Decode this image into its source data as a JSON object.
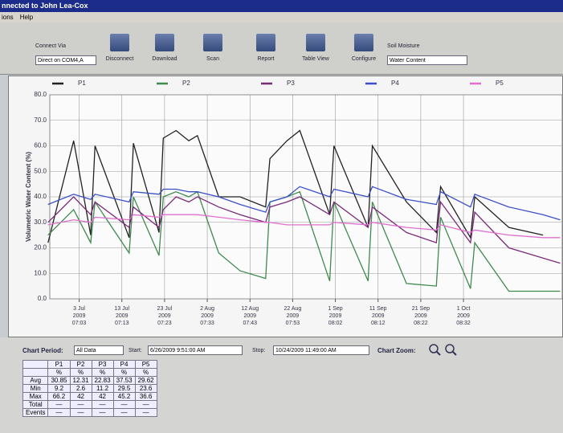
{
  "window": {
    "title": "nnected to John Lea-Cox",
    "menu": [
      "ions",
      "Help"
    ]
  },
  "toolbar": {
    "connect_via_label": "Connect Via",
    "connect_via": "Direct on COM4,A",
    "buttons": [
      "Disconnect",
      "Download",
      "Scan",
      "Report",
      "Table View",
      "Configure"
    ],
    "soil_moisture_label": "Soil Moisture",
    "soil_moisture": "Water Content"
  },
  "chart_data": {
    "type": "line",
    "y_label": "Volumetric Water Content (%)",
    "x": [
      "2009-06-26",
      "2009-07-02",
      "2009-07-06",
      "2009-07-07",
      "2009-07-15",
      "2009-07-16",
      "2009-07-22",
      "2009-07-23",
      "2009-07-26",
      "2009-07-29",
      "2009-07-31",
      "2009-08-05",
      "2009-08-10",
      "2009-08-16",
      "2009-08-17",
      "2009-08-21",
      "2009-08-24",
      "2009-08-31",
      "2009-09-01",
      "2009-09-09",
      "2009-09-10",
      "2009-09-18",
      "2009-09-25",
      "2009-09-26",
      "2009-10-03",
      "2009-10-04",
      "2009-10-12",
      "2009-10-20",
      "2009-10-24"
    ],
    "series": [
      {
        "name": "P1",
        "color": "#222222",
        "values": [
          22,
          62,
          25,
          60,
          24,
          61,
          26,
          63,
          66,
          62,
          64,
          40,
          40,
          36,
          55,
          62,
          66,
          33,
          60,
          28,
          60,
          38,
          26,
          44,
          24,
          40,
          28,
          25,
          null
        ]
      },
      {
        "name": "P2",
        "color": "#3f8a4f",
        "values": [
          25,
          35,
          22,
          38,
          18,
          40,
          17,
          40,
          42,
          40,
          42,
          18,
          11,
          8,
          38,
          40,
          42,
          7,
          38,
          7,
          38,
          6,
          5,
          32,
          4,
          22,
          3,
          3,
          3
        ]
      },
      {
        "name": "P3",
        "color": "#7a2a7a",
        "values": [
          30,
          40,
          33,
          38,
          28,
          36,
          28,
          35,
          40,
          38,
          40,
          36,
          33,
          30,
          36,
          38,
          40,
          33,
          38,
          28,
          36,
          26,
          22,
          38,
          22,
          34,
          20,
          16,
          14
        ]
      },
      {
        "name": "P4",
        "color": "#3a4fc8",
        "values": [
          37,
          41,
          39,
          41,
          38,
          42,
          41,
          43,
          43,
          42,
          42,
          40,
          37,
          34,
          38,
          40,
          44,
          40,
          43,
          40,
          44,
          39,
          37,
          42,
          36,
          41,
          36,
          33,
          31
        ]
      },
      {
        "name": "P5",
        "color": "#e070d0",
        "values": [
          29,
          31,
          30,
          32,
          31,
          33,
          32,
          33,
          33,
          33,
          33,
          32,
          31,
          30,
          30,
          29,
          29,
          29,
          30,
          29,
          30,
          28,
          27,
          29,
          26,
          27,
          25,
          24,
          24
        ]
      }
    ],
    "xlim": [
      "2009-06-26T09:51",
      "2009-10-24T11:49"
    ],
    "xticks": [
      {
        "value": "2009-07-03T07:03",
        "label": "3 Jul\n2009\n07:03"
      },
      {
        "value": "2009-07-13T07:13",
        "label": "13 Jul\n2009\n07:13"
      },
      {
        "value": "2009-07-23T07:23",
        "label": "23 Jul\n2009\n07:23"
      },
      {
        "value": "2009-08-02T07:33",
        "label": "2 Aug\n2009\n07:33"
      },
      {
        "value": "2009-08-12T07:43",
        "label": "12 Aug\n2009\n07:43"
      },
      {
        "value": "2009-08-22T07:53",
        "label": "22 Aug\n2009\n07:53"
      },
      {
        "value": "2009-09-01T08:02",
        "label": "1 Sep\n2009\n08:02"
      },
      {
        "value": "2009-09-11T08:12",
        "label": "11 Sep\n2009\n08:12"
      },
      {
        "value": "2009-09-21T08:22",
        "label": "21 Sep\n2009\n08:22"
      },
      {
        "value": "2009-10-01T08:32",
        "label": "1 Oct\n2009\n08:32"
      }
    ],
    "ylim": [
      0,
      80
    ],
    "yticks": [
      {
        "value": 0,
        "label": "0.0"
      },
      {
        "value": 10,
        "label": "10.0"
      },
      {
        "value": 20,
        "label": "20.0"
      },
      {
        "value": 30,
        "label": "30.0"
      },
      {
        "value": 40,
        "label": "40.0"
      },
      {
        "value": 50,
        "label": "50.0"
      },
      {
        "value": 60,
        "label": "60.0"
      },
      {
        "value": 70,
        "label": "70.0"
      },
      {
        "value": 80,
        "label": "80.0"
      }
    ],
    "grid": true
  },
  "controls": {
    "chart_period_label": "Chart Period:",
    "chart_period": "All Data",
    "start_label": "Start:",
    "start": "6/26/2009 9:51:00 AM",
    "stop_label": "Stop:",
    "stop": "10/24/2009 11:49:00 AM",
    "zoom_label": "Chart Zoom:"
  },
  "stats_table": {
    "columns": [
      "P1",
      "P2",
      "P3",
      "P4",
      "P5"
    ],
    "units": [
      "%",
      "%",
      "%",
      "%",
      "%"
    ],
    "rows": [
      [
        "Avg",
        30.85,
        12.31,
        22.83,
        37.53,
        29.62
      ],
      [
        "Min",
        9.2,
        2.6,
        11.2,
        29.5,
        23.6
      ],
      [
        "Max",
        66.2,
        42,
        42,
        45.2,
        36.6
      ],
      [
        "Total",
        "—",
        "—",
        "—",
        "—",
        "—"
      ],
      [
        "Events",
        "—",
        "—",
        "—",
        "—",
        "—"
      ]
    ]
  }
}
